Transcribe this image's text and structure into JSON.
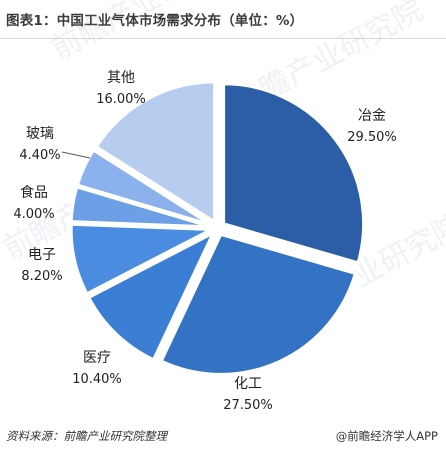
{
  "header": {
    "title": "图表1：中国工业气体市场需求分布（单位：%）"
  },
  "footer": {
    "source": "资料来源：前瞻产业研究院整理",
    "credit": "@前瞻经济学人APP"
  },
  "watermark": {
    "text": "前瞻产业研究院"
  },
  "chart_data": {
    "type": "pie",
    "title": "图表1：中国工业气体市场需求分布（单位：%）",
    "unit": "%",
    "slices": [
      {
        "label": "冶金",
        "value": 29.5,
        "display": "29.50%",
        "color": "#2c5ea8"
      },
      {
        "label": "化工",
        "value": 27.5,
        "display": "27.50%",
        "color": "#3472c4"
      },
      {
        "label": "医疗",
        "value": 10.4,
        "display": "10.40%",
        "color": "#3b7fd4"
      },
      {
        "label": "电子",
        "value": 8.2,
        "display": "8.20%",
        "color": "#4a8de0"
      },
      {
        "label": "食品",
        "value": 4.0,
        "display": "4.00%",
        "color": "#6c9fe6"
      },
      {
        "label": "玻璃",
        "value": 4.4,
        "display": "4.40%",
        "color": "#8ab1ec"
      },
      {
        "label": "其他",
        "value": 16.0,
        "display": "16.00%",
        "color": "#b7cdf0"
      }
    ],
    "start": "12 o'clock",
    "direction": "clockwise",
    "exploded": true,
    "legend": "none"
  }
}
